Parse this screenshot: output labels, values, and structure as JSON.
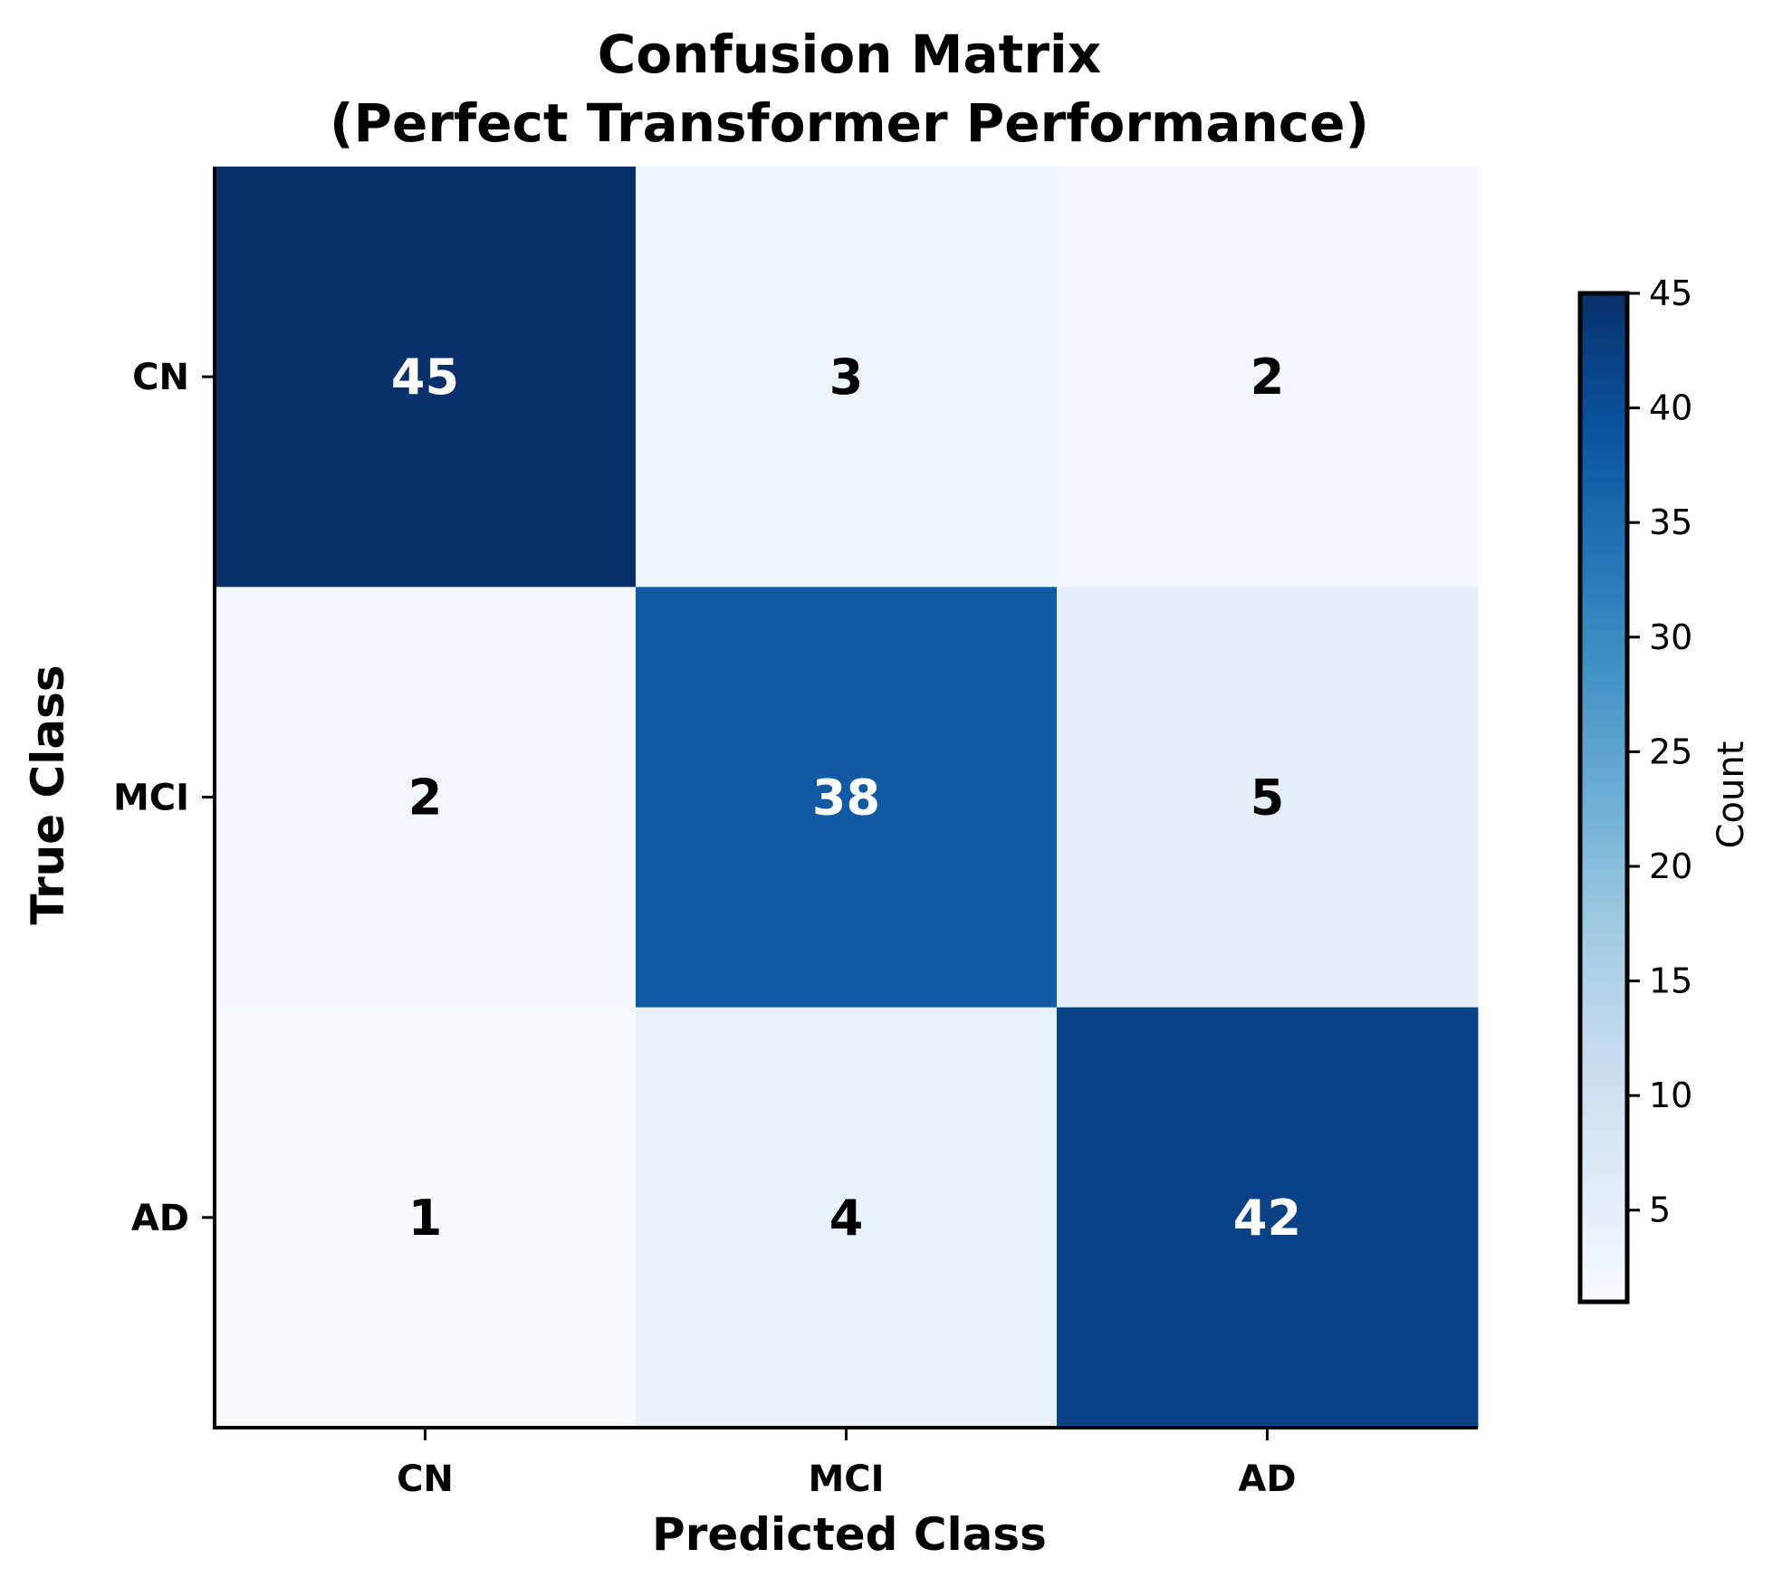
{
  "chart_data": {
    "type": "heatmap",
    "title_lines": [
      "Confusion Matrix",
      "(Perfect Transformer Performance)"
    ],
    "xlabel": "Predicted Class",
    "ylabel": "True Class",
    "x_categories": [
      "CN",
      "MCI",
      "AD"
    ],
    "y_categories": [
      "CN",
      "MCI",
      "AD"
    ],
    "values": [
      [
        45,
        3,
        2
      ],
      [
        2,
        38,
        5
      ],
      [
        1,
        4,
        42
      ]
    ],
    "colormap": "Blues",
    "value_range": [
      1,
      45
    ],
    "colorbar": {
      "label": "Count",
      "ticks": [
        5,
        10,
        15,
        20,
        25,
        30,
        35,
        40,
        45
      ]
    },
    "colors": {
      "text_dark": "#000000",
      "text_light": "#ffffff"
    }
  }
}
